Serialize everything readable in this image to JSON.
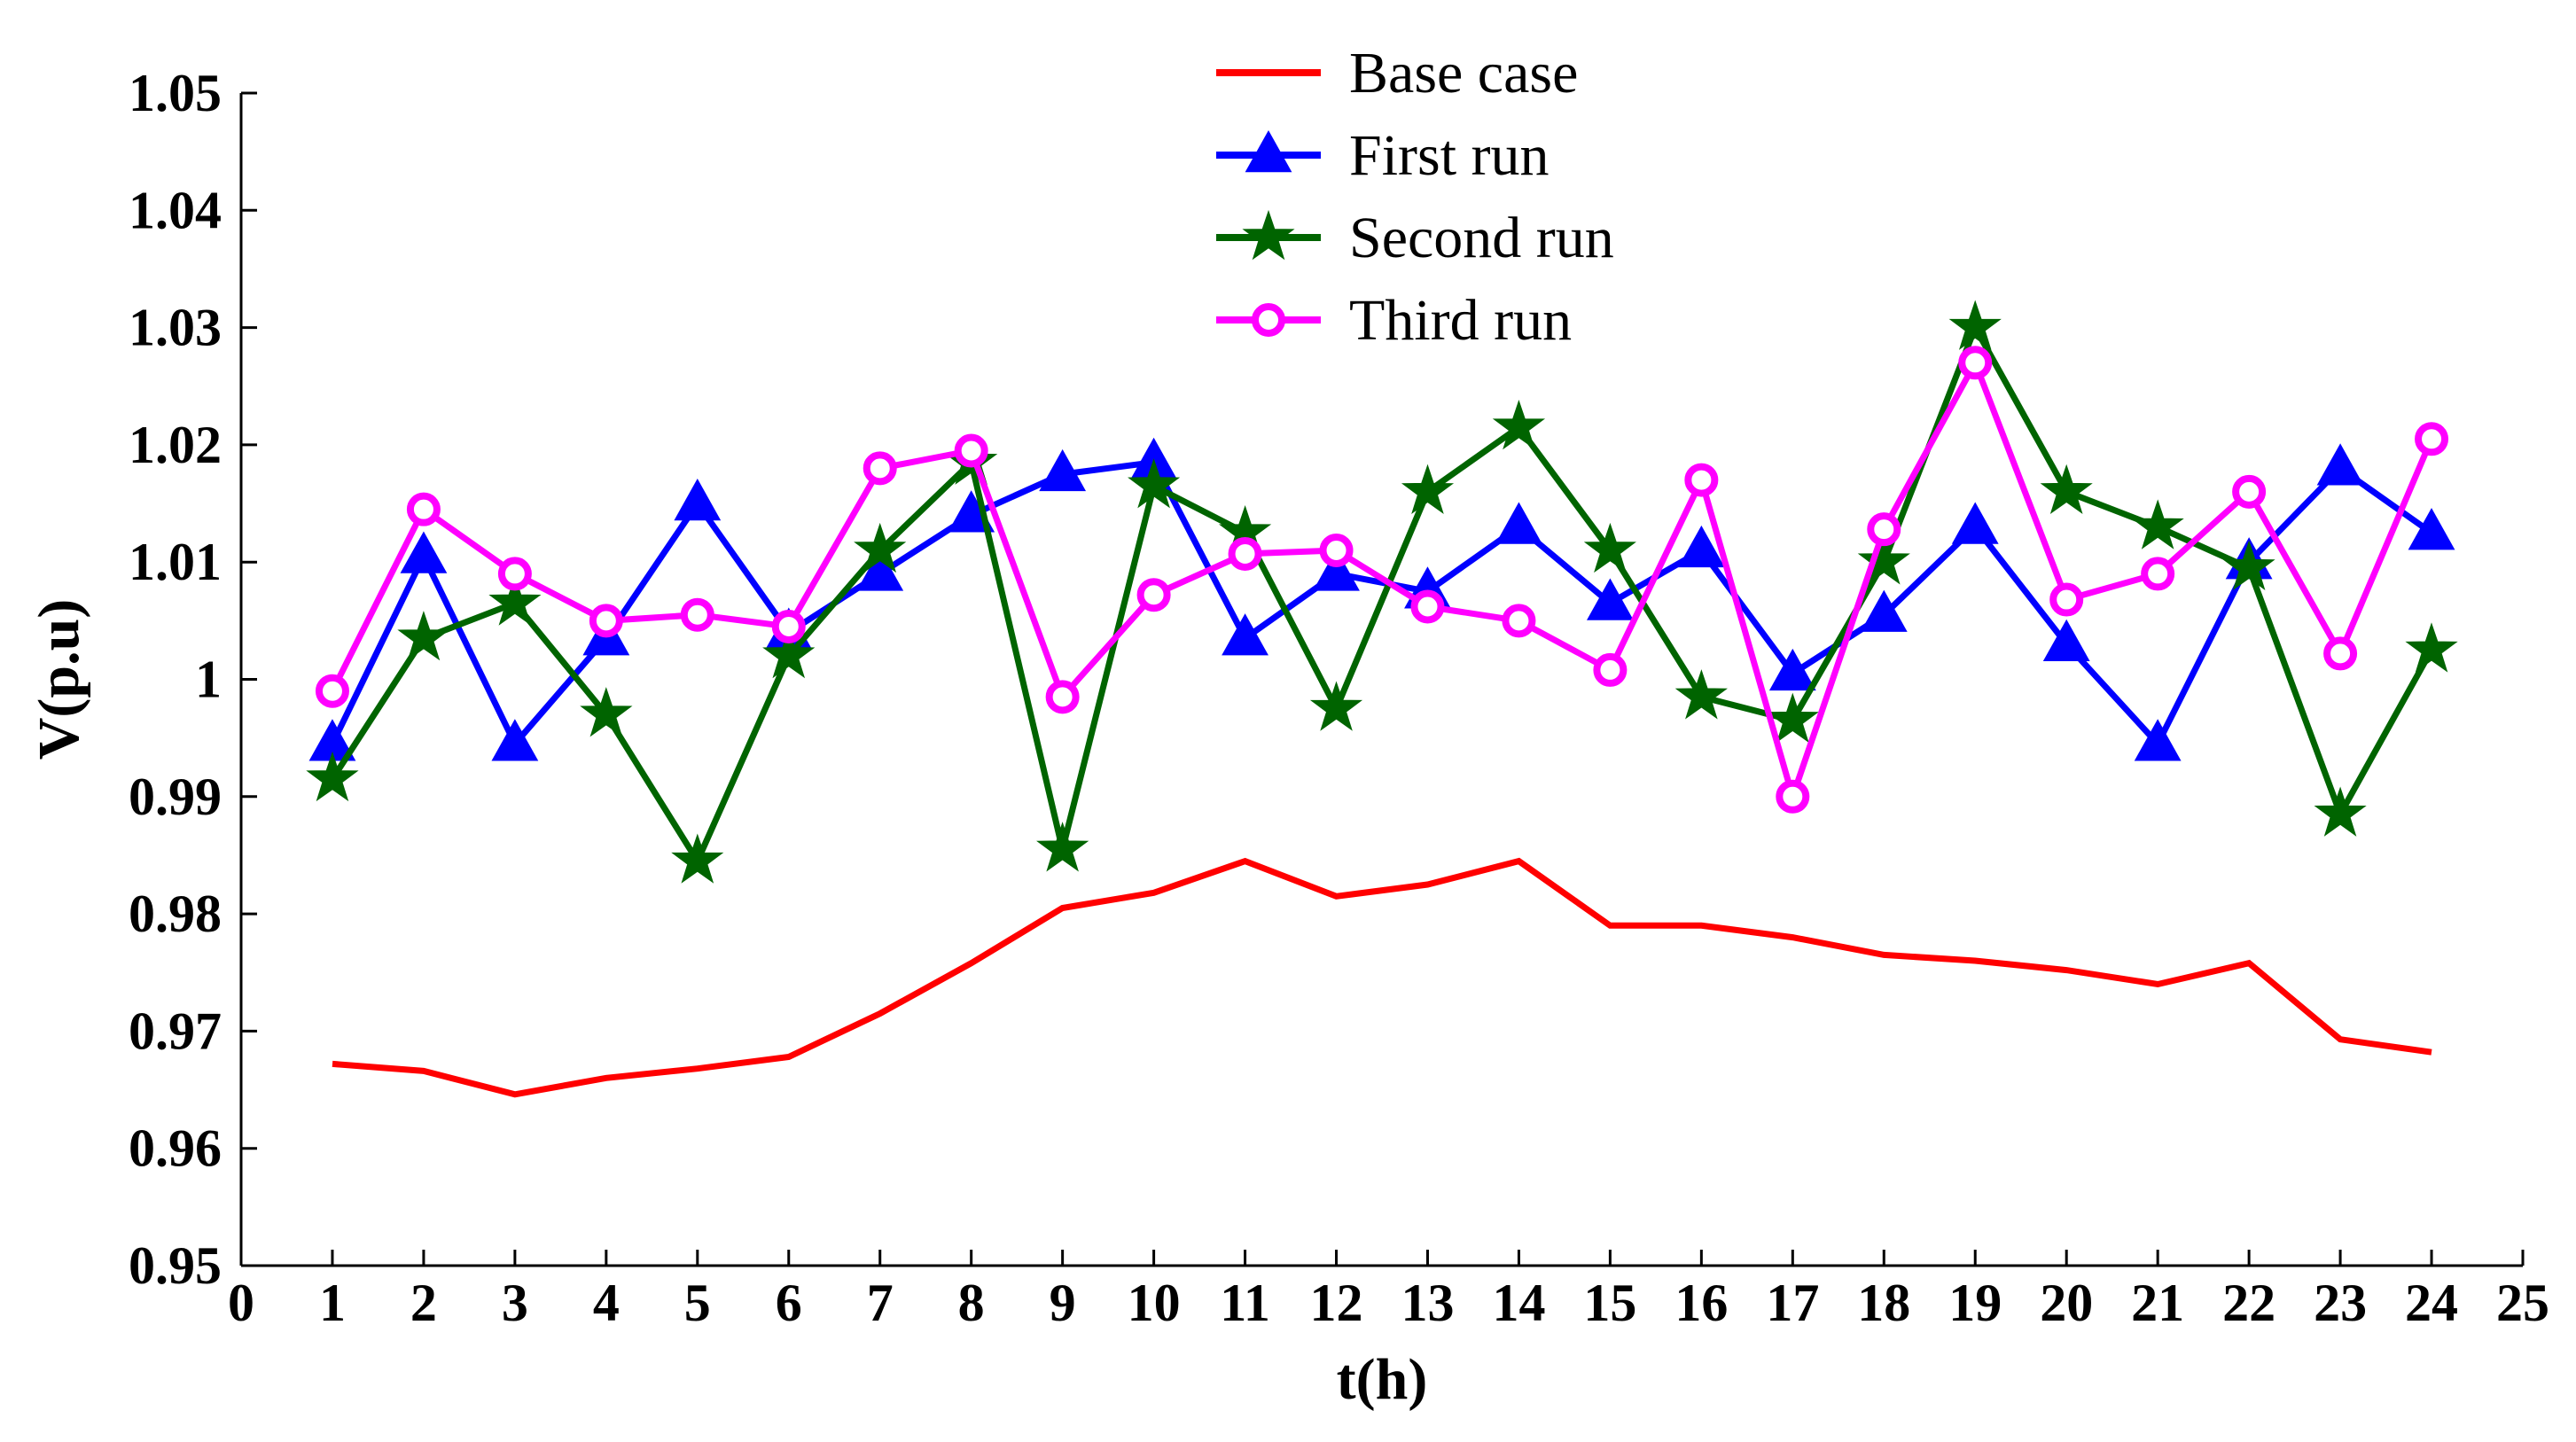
{
  "chart_data": {
    "type": "line",
    "title": "",
    "xlabel": "t(h)",
    "ylabel": "V(p.u)",
    "xlim": [
      0,
      25
    ],
    "ylim": [
      0.95,
      1.05
    ],
    "x_ticks": [
      0,
      1,
      2,
      3,
      4,
      5,
      6,
      7,
      8,
      9,
      10,
      11,
      12,
      13,
      14,
      15,
      16,
      17,
      18,
      19,
      20,
      21,
      22,
      23,
      24,
      25
    ],
    "y_ticks": [
      0.95,
      0.96,
      0.97,
      0.98,
      0.99,
      1.0,
      1.01,
      1.02,
      1.03,
      1.04,
      1.05
    ],
    "y_tick_labels": [
      "0.95",
      "0.96",
      "0.97",
      "0.98",
      "0.99",
      "1",
      "1.01",
      "1.02",
      "1.03",
      "1.04",
      "1.05"
    ],
    "x": [
      1,
      2,
      3,
      4,
      5,
      6,
      7,
      8,
      9,
      10,
      11,
      12,
      13,
      14,
      15,
      16,
      17,
      18,
      19,
      20,
      21,
      22,
      23,
      24
    ],
    "legend_position": "top-center",
    "series": [
      {
        "name": "Base case",
        "color": "#ff0000",
        "marker": "none",
        "values": [
          0.9672,
          0.9666,
          0.9646,
          0.966,
          0.9668,
          0.9678,
          0.9715,
          0.9758,
          0.9805,
          0.9818,
          0.9845,
          0.9815,
          0.9825,
          0.9845,
          0.979,
          0.979,
          0.978,
          0.9765,
          0.976,
          0.9752,
          0.974,
          0.9758,
          0.9693,
          0.9682
        ]
      },
      {
        "name": "First run",
        "color": "#0000ff",
        "marker": "triangle",
        "values": [
          0.9945,
          1.0105,
          0.9945,
          1.0035,
          1.015,
          1.004,
          1.009,
          1.014,
          1.0175,
          1.0185,
          1.0035,
          1.009,
          1.0075,
          1.013,
          1.0065,
          1.011,
          1.0005,
          1.0055,
          1.013,
          1.003,
          0.9945,
          1.01,
          1.018,
          1.0125
        ]
      },
      {
        "name": "Second run",
        "color": "#006400",
        "marker": "star",
        "values": [
          0.9915,
          1.0035,
          1.0065,
          0.997,
          0.9845,
          1.002,
          1.011,
          1.0185,
          0.9855,
          1.0165,
          1.0125,
          0.9975,
          1.016,
          1.0215,
          1.011,
          0.9985,
          0.9965,
          1.01,
          1.03,
          1.016,
          1.013,
          1.0095,
          0.9885,
          1.0025
        ]
      },
      {
        "name": "Third run",
        "color": "#ff00ff",
        "marker": "circle",
        "values": [
          0.999,
          1.0145,
          1.009,
          1.005,
          1.0055,
          1.0045,
          1.018,
          1.0195,
          0.9985,
          1.0072,
          1.0107,
          1.011,
          1.0062,
          1.005,
          1.0008,
          1.017,
          0.99,
          1.0128,
          1.027,
          1.0068,
          1.009,
          1.016,
          1.0022,
          1.0205
        ]
      }
    ]
  }
}
